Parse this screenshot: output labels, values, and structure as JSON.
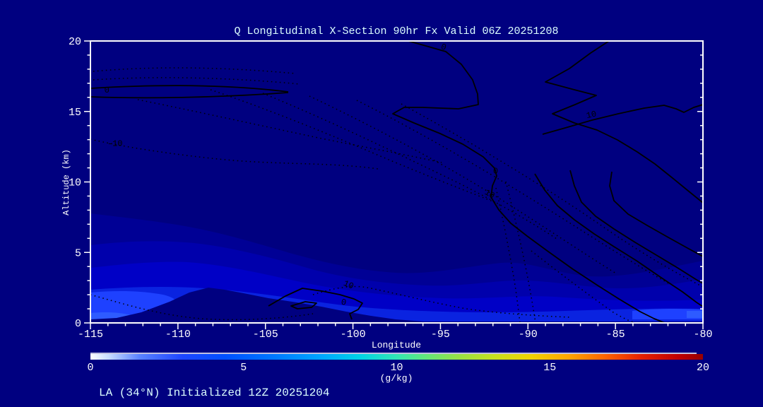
{
  "page": {
    "background": "#000080"
  },
  "title": {
    "text": "Q Longitudinal X-Section 90hr  Fx Valid 06Z 20251208",
    "color": "#DCFFFF"
  },
  "footer": {
    "text": "LA (34°N) Initialized 12Z 20251204",
    "color": "#DCFFFF"
  },
  "axes": {
    "x": {
      "label": "Longitude",
      "min": -115,
      "max": -80,
      "major_ticks": [
        -115,
        -110,
        -105,
        -100,
        -95,
        -90,
        -85,
        -80
      ],
      "minor_step": 1
    },
    "y": {
      "label": "Altitude (km)",
      "min": 0,
      "max": 20,
      "major_ticks": [
        0,
        5,
        10,
        15,
        20
      ],
      "minor_step": 1
    },
    "tick_color": "#FFFFFF",
    "label_color": "#FFFFFF"
  },
  "colorbar": {
    "min": 0,
    "max": 20,
    "tick_values": [
      0,
      5,
      10,
      15,
      20
    ],
    "tick_labels": [
      "0",
      "5",
      "10",
      "15",
      "20"
    ],
    "unit": "(g/kg)",
    "stops": [
      [
        0,
        "#FFFFFF"
      ],
      [
        0.03,
        "#C8DCFF"
      ],
      [
        0.08,
        "#5A82FF"
      ],
      [
        0.15,
        "#1E46FF"
      ],
      [
        0.22,
        "#0050FF"
      ],
      [
        0.3,
        "#0078FF"
      ],
      [
        0.38,
        "#00A8FF"
      ],
      [
        0.44,
        "#00D2E6"
      ],
      [
        0.5,
        "#32E6B4"
      ],
      [
        0.55,
        "#64E678"
      ],
      [
        0.6,
        "#96E146"
      ],
      [
        0.66,
        "#C8E11E"
      ],
      [
        0.72,
        "#F0D200"
      ],
      [
        0.78,
        "#FFA500"
      ],
      [
        0.84,
        "#FF6400"
      ],
      [
        0.9,
        "#E62000"
      ],
      [
        0.96,
        "#C00000"
      ],
      [
        1,
        "#960000"
      ]
    ]
  },
  "chart_data": {
    "type": "filled_contour_cross_section",
    "variable": "Q specific humidity (g/kg), shaded; overlay field in black contours",
    "x_axis": "Longitude (deg)",
    "y_axis": "Altitude (km)",
    "xlim": [
      -115,
      -80
    ],
    "ylim": [
      0,
      20
    ],
    "longitudes": [
      -115,
      -110,
      -105,
      -100,
      -95,
      -90,
      -85,
      -80
    ],
    "shaded_bands": [
      {
        "level_g_per_kg": 1,
        "color": "#000095",
        "top_km": [
          7.8,
          7.0,
          5.4,
          3.8,
          3.5,
          4.3,
          3.3,
          4.4
        ]
      },
      {
        "level_g_per_kg": 2,
        "color": "#0000AC",
        "top_km": [
          5.5,
          5.8,
          4.7,
          3.1,
          2.7,
          3.0,
          2.5,
          3.1
        ]
      },
      {
        "level_g_per_kg": 3,
        "color": "#0000C6",
        "top_km": [
          3.9,
          4.4,
          3.4,
          2.3,
          1.9,
          2.0,
          1.6,
          1.7
        ]
      },
      {
        "level_g_per_kg": 4,
        "color": "#0A23E0",
        "top_km": [
          2.4,
          2.6,
          2.0,
          1.3,
          0.8,
          0.75,
          1.05,
          1.0
        ]
      },
      {
        "level_g_per_kg": 5,
        "color": "#1E41FF",
        "top_km": [
          2.1,
          0.3,
          0,
          0,
          0,
          0,
          0.5,
          0.95
        ]
      },
      {
        "level_g_per_kg": 6,
        "color": "#2E5BFF",
        "top_km": [
          0.6,
          0,
          0,
          0,
          0,
          0,
          0,
          0.8
        ]
      }
    ],
    "terrain_height_km": [
      0.25,
      1.7,
      1.8,
      0.7,
      0.1,
      0.1,
      0.1,
      0.1
    ],
    "terrain_peak": {
      "lon": -108.3,
      "km": 2.5
    },
    "overlay_contours": {
      "solid_style": "values >= 0",
      "dotted_style": "values < 0",
      "levels_labeled": [
        -10,
        0,
        10
      ],
      "labels": [
        {
          "value": "0",
          "lon": -114.05,
          "km": 16.35,
          "rot": -5
        },
        {
          "value": "-10",
          "lon": -113.6,
          "km": 12.55,
          "rot": 0
        },
        {
          "value": "0",
          "lon": -94.85,
          "km": 19.4,
          "rot": 15
        },
        {
          "value": "0",
          "lon": -91.85,
          "km": 10.6,
          "rot": 0
        },
        {
          "value": "10",
          "lon": -86.35,
          "km": 14.6,
          "rot": -12
        },
        {
          "value": "10",
          "lon": -92.25,
          "km": 9.0,
          "rot": 28
        },
        {
          "value": "10",
          "lon": -100.3,
          "km": 2.55,
          "rot": 22
        },
        {
          "value": "0",
          "lon": -100.55,
          "km": 1.3,
          "rot": 10
        }
      ]
    }
  },
  "colors": {
    "background": "#000080",
    "axis": "#FFFFFF",
    "contour_line": "#000000"
  }
}
